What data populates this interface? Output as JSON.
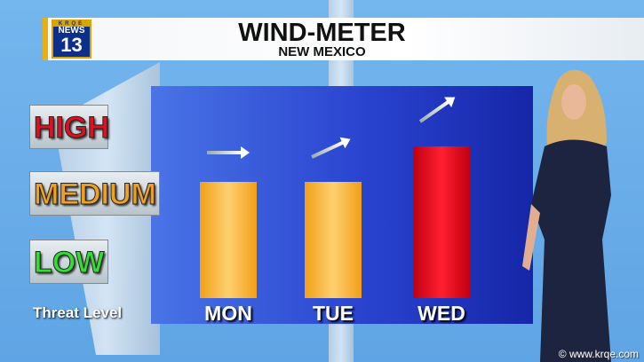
{
  "header": {
    "title": "WIND-METER",
    "subtitle": "NEW MEXICO"
  },
  "logo": {
    "station": "KRQE",
    "word": "NEWS",
    "number": "13"
  },
  "colors": {
    "sky": "#6eb0ea",
    "panel": "#2a44d0",
    "medium": "#f0a018",
    "high": "#e0101c",
    "high_text": "#e01020",
    "medium_text": "#f0a020",
    "low_text": "#30e030"
  },
  "legend": {
    "levels": [
      "HIGH",
      "MEDIUM",
      "LOW"
    ],
    "caption": "Threat Level"
  },
  "chart_data": {
    "type": "bar",
    "categories": [
      "MON",
      "TUE",
      "WED"
    ],
    "values": [
      "MEDIUM",
      "MEDIUM",
      "HIGH"
    ],
    "y_levels": [
      "LOW",
      "MEDIUM",
      "HIGH"
    ],
    "ylabel": "Threat Level",
    "bar_colors": [
      "#f0a018",
      "#f0a018",
      "#e0101c"
    ],
    "wind_arrow_icons": [
      "arrow-right-icon",
      "arrow-up-right-icon",
      "arrow-up-right-icon"
    ]
  },
  "watermark": "© www.krqe.com"
}
